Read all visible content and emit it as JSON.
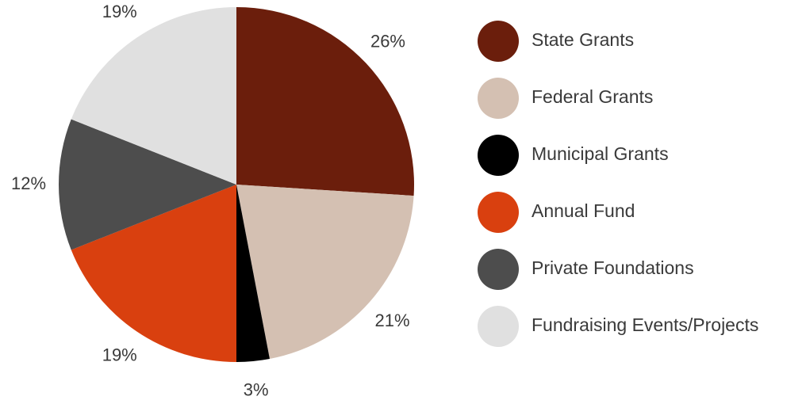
{
  "chart_data": {
    "type": "pie",
    "categories": [
      "State Grants",
      "Federal Grants",
      "Municipal Grants",
      "Annual Fund",
      "Private Foundations",
      "Fundraising Events/Projects"
    ],
    "values": [
      26,
      21,
      3,
      19,
      12,
      19
    ],
    "value_labels": [
      "26%",
      "21%",
      "3%",
      "19%",
      "12%",
      "19%"
    ],
    "colors": [
      "#6b1e0c",
      "#d4c0b2",
      "#000000",
      "#d9400f",
      "#4d4d4d",
      "#e0e0e0"
    ],
    "legend": "right"
  }
}
